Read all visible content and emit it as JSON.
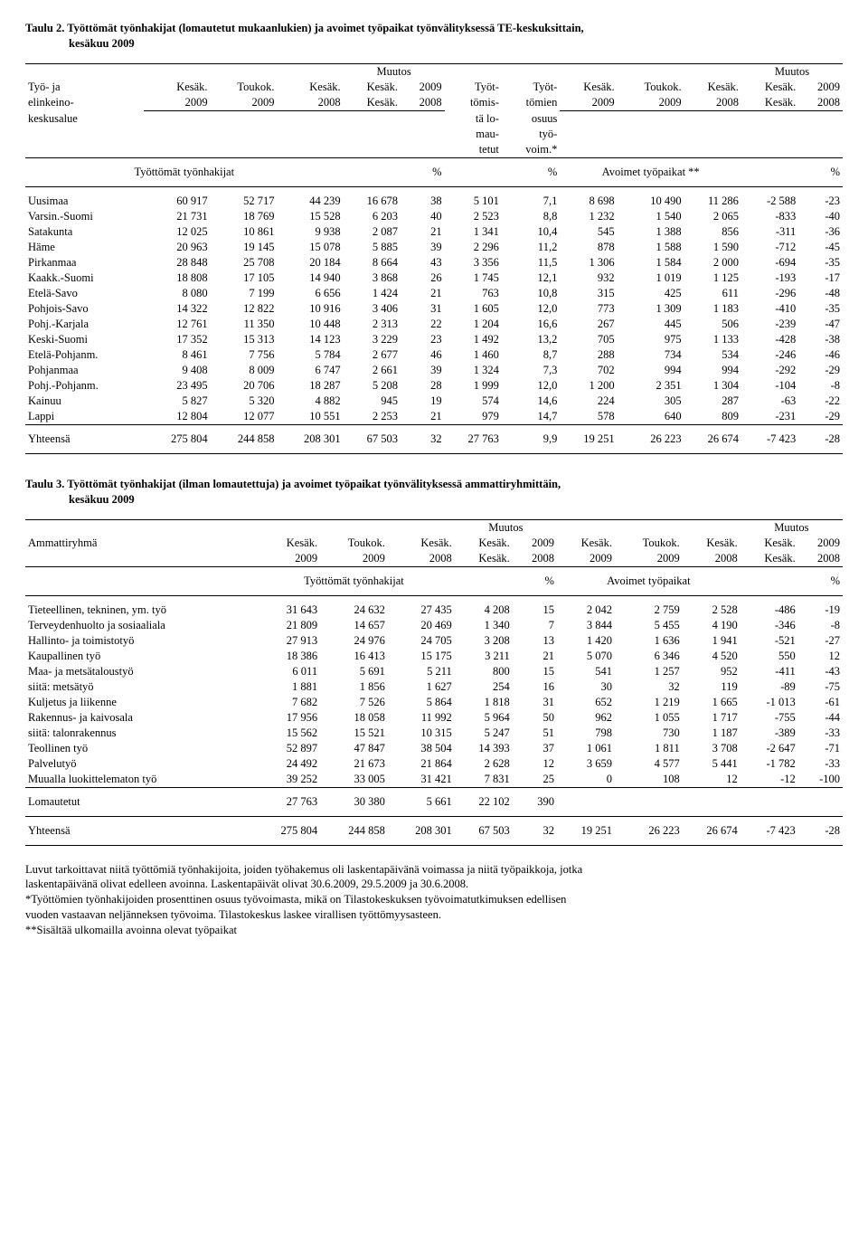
{
  "table2": {
    "title": "Taulu 2. Työttömät työnhakijat (lomautetut mukaanlukien) ja avoimet työpaikat työnvälityksessä TE-keskuksittain,",
    "subtitle": "kesäkuu 2009",
    "headers": {
      "col0": [
        "Työ- ja",
        "elinkeino-",
        "keskusalue"
      ],
      "col1": [
        "Kesäk.",
        "2009"
      ],
      "col2": [
        "Toukok.",
        "2009"
      ],
      "col3": [
        "Kesäk.",
        "2008"
      ],
      "col4_top": "Muutos",
      "col4": [
        "Kesäk.",
        "Kesäk."
      ],
      "col5": [
        "2009",
        "2008"
      ],
      "col6": [
        "Työt-",
        "tömis-",
        "tä lo-",
        "mau-",
        "tetut"
      ],
      "col7": [
        "Työt-",
        "tömien",
        "osuus",
        "työ-",
        "voim.*"
      ],
      "col8": [
        "Kesäk.",
        "2009"
      ],
      "col9": [
        "Toukok.",
        "2009"
      ],
      "col10": [
        "Kesäk.",
        "2008"
      ],
      "col11_top": "Muutos",
      "col11": [
        "Kesäk.",
        "Kesäk."
      ],
      "col12": [
        "2009",
        "2008"
      ]
    },
    "subheader": {
      "left": "Työttömät työnhakijat",
      "pct1": "%",
      "pct2": "%",
      "right": "Avoimet työpaikat **",
      "pct3": "%"
    },
    "rows": [
      [
        "Uusimaa",
        "60 917",
        "52 717",
        "44 239",
        "16 678",
        "38",
        "5 101",
        "7,1",
        "8 698",
        "10 490",
        "11 286",
        "-2 588",
        "-23"
      ],
      [
        "Varsin.-Suomi",
        "21 731",
        "18 769",
        "15 528",
        "6 203",
        "40",
        "2 523",
        "8,8",
        "1 232",
        "1 540",
        "2 065",
        "-833",
        "-40"
      ],
      [
        "Satakunta",
        "12 025",
        "10 861",
        "9 938",
        "2 087",
        "21",
        "1 341",
        "10,4",
        "545",
        "1 388",
        "856",
        "-311",
        "-36"
      ],
      [
        "Häme",
        "20 963",
        "19 145",
        "15 078",
        "5 885",
        "39",
        "2 296",
        "11,2",
        "878",
        "1 588",
        "1 590",
        "-712",
        "-45"
      ],
      [
        "Pirkanmaa",
        "28 848",
        "25 708",
        "20 184",
        "8 664",
        "43",
        "3 356",
        "11,5",
        "1 306",
        "1 584",
        "2 000",
        "-694",
        "-35"
      ],
      [
        "Kaakk.-Suomi",
        "18 808",
        "17 105",
        "14 940",
        "3 868",
        "26",
        "1 745",
        "12,1",
        "932",
        "1 019",
        "1 125",
        "-193",
        "-17"
      ],
      [
        "Etelä-Savo",
        "8 080",
        "7 199",
        "6 656",
        "1 424",
        "21",
        "763",
        "10,8",
        "315",
        "425",
        "611",
        "-296",
        "-48"
      ],
      [
        "Pohjois-Savo",
        "14 322",
        "12 822",
        "10 916",
        "3 406",
        "31",
        "1 605",
        "12,0",
        "773",
        "1 309",
        "1 183",
        "-410",
        "-35"
      ],
      [
        "Pohj.-Karjala",
        "12 761",
        "11 350",
        "10 448",
        "2 313",
        "22",
        "1 204",
        "16,6",
        "267",
        "445",
        "506",
        "-239",
        "-47"
      ],
      [
        "Keski-Suomi",
        "17 352",
        "15 313",
        "14 123",
        "3 229",
        "23",
        "1 492",
        "13,2",
        "705",
        "975",
        "1 133",
        "-428",
        "-38"
      ],
      [
        "Etelä-Pohjanm.",
        "8 461",
        "7 756",
        "5 784",
        "2 677",
        "46",
        "1 460",
        "8,7",
        "288",
        "734",
        "534",
        "-246",
        "-46"
      ],
      [
        "Pohjanmaa",
        "9 408",
        "8 009",
        "6 747",
        "2 661",
        "39",
        "1 324",
        "7,3",
        "702",
        "994",
        "994",
        "-292",
        "-29"
      ],
      [
        "Pohj.-Pohjanm.",
        "23 495",
        "20 706",
        "18 287",
        "5 208",
        "28",
        "1 999",
        "12,0",
        "1 200",
        "2 351",
        "1 304",
        "-104",
        "-8"
      ],
      [
        "Kainuu",
        "5 827",
        "5 320",
        "4 882",
        "945",
        "19",
        "574",
        "14,6",
        "224",
        "305",
        "287",
        "-63",
        "-22"
      ],
      [
        "Lappi",
        "12 804",
        "12 077",
        "10 551",
        "2 253",
        "21",
        "979",
        "14,7",
        "578",
        "640",
        "809",
        "-231",
        "-29"
      ]
    ],
    "total": [
      "Yhteensä",
      "275 804",
      "244 858",
      "208 301",
      "67 503",
      "32",
      "27 763",
      "9,9",
      "19 251",
      "26 223",
      "26 674",
      "-7 423",
      "-28"
    ]
  },
  "table3": {
    "title": "Taulu 3. Työttömät työnhakijat (ilman lomautettuja) ja avoimet työpaikat työnvälityksessä ammattiryhmittäin,",
    "subtitle": "kesäkuu 2009",
    "headers": {
      "col0": "Ammattiryhmä",
      "col1": [
        "Kesäk.",
        "2009"
      ],
      "col2": [
        "Toukok.",
        "2009"
      ],
      "col3": [
        "Kesäk.",
        "2008"
      ],
      "col4_top": "Muutos",
      "col4": [
        "Kesäk.",
        "Kesäk."
      ],
      "col5": [
        "2009",
        "2008"
      ],
      "col6": [
        "Kesäk.",
        "2009"
      ],
      "col7": [
        "Toukok.",
        "2009"
      ],
      "col8": [
        "Kesäk.",
        "2008"
      ],
      "col9_top": "Muutos",
      "col9": [
        "Kesäk.",
        "Kesäk."
      ],
      "col10": [
        "2009",
        "2008"
      ]
    },
    "subheader": {
      "left": "Työttömät työnhakijat",
      "pct1": "%",
      "right": "Avoimet työpaikat",
      "pct2": "%"
    },
    "rows": [
      [
        "Tieteellinen, tekninen, ym. työ",
        "31 643",
        "24 632",
        "27 435",
        "4 208",
        "15",
        "2 042",
        "2 759",
        "2 528",
        "-486",
        "-19"
      ],
      [
        "Terveydenhuolto ja sosiaaliala",
        "21 809",
        "14 657",
        "20 469",
        "1 340",
        "7",
        "3 844",
        "5 455",
        "4 190",
        "-346",
        "-8"
      ],
      [
        "Hallinto- ja toimistotyö",
        "27 913",
        "24 976",
        "24 705",
        "3 208",
        "13",
        "1 420",
        "1 636",
        "1 941",
        "-521",
        "-27"
      ],
      [
        "Kaupallinen työ",
        "18 386",
        "16 413",
        "15 175",
        "3 211",
        "21",
        "5 070",
        "6 346",
        "4 520",
        "550",
        "12"
      ],
      [
        "Maa- ja metsätaloustyö",
        "6 011",
        "5 691",
        "5 211",
        "800",
        "15",
        "541",
        "1 257",
        "952",
        "-411",
        "-43"
      ],
      [
        "siitä: metsätyö",
        "1 881",
        "1 856",
        "1 627",
        "254",
        "16",
        "30",
        "32",
        "119",
        "-89",
        "-75"
      ],
      [
        "Kuljetus ja liikenne",
        "7 682",
        "7 526",
        "5 864",
        "1 818",
        "31",
        "652",
        "1 219",
        "1 665",
        "-1 013",
        "-61"
      ],
      [
        "Rakennus- ja kaivosala",
        "17 956",
        "18 058",
        "11 992",
        "5 964",
        "50",
        "962",
        "1 055",
        "1 717",
        "-755",
        "-44"
      ],
      [
        "siitä: talonrakennus",
        "15 562",
        "15 521",
        "10 315",
        "5 247",
        "51",
        "798",
        "730",
        "1 187",
        "-389",
        "-33"
      ],
      [
        "Teollinen työ",
        "52 897",
        "47 847",
        "38 504",
        "14 393",
        "37",
        "1 061",
        "1 811",
        "3 708",
        "-2 647",
        "-71"
      ],
      [
        "Palvelutyö",
        "24 492",
        "21 673",
        "21 864",
        "2 628",
        "12",
        "3 659",
        "4 577",
        "5 441",
        "-1 782",
        "-33"
      ],
      [
        "Muualla luokittelematon työ",
        "39 252",
        "33 005",
        "31 421",
        "7 831",
        "25",
        "0",
        "108",
        "12",
        "-12",
        "-100"
      ]
    ],
    "lomautetut": [
      "Lomautetut",
      "27 763",
      "30 380",
      "5 661",
      "22 102",
      "390",
      "",
      "",
      "",
      "",
      ""
    ],
    "total": [
      "Yhteensä",
      "275 804",
      "244 858",
      "208 301",
      "67 503",
      "32",
      "19 251",
      "26 223",
      "26 674",
      "-7 423",
      "-28"
    ]
  },
  "footnotes": [
    "Luvut tarkoittavat niitä työttömiä työnhakijoita, joiden työhakemus oli laskentapäivänä voimassa ja niitä työpaikkoja, jotka",
    "laskentapäivänä olivat edelleen avoinna. Laskentapäivät olivat 30.6.2009, 29.5.2009 ja 30.6.2008.",
    "*Työttömien työnhakijoiden prosenttinen osuus työvoimasta, mikä on Tilastokeskuksen työvoimatutkimuksen edellisen",
    "vuoden vastaavan neljänneksen työvoima. Tilastokeskus laskee virallisen työttömyysasteen.",
    "**Sisältää ulkomailla avoinna olevat työpaikat"
  ]
}
